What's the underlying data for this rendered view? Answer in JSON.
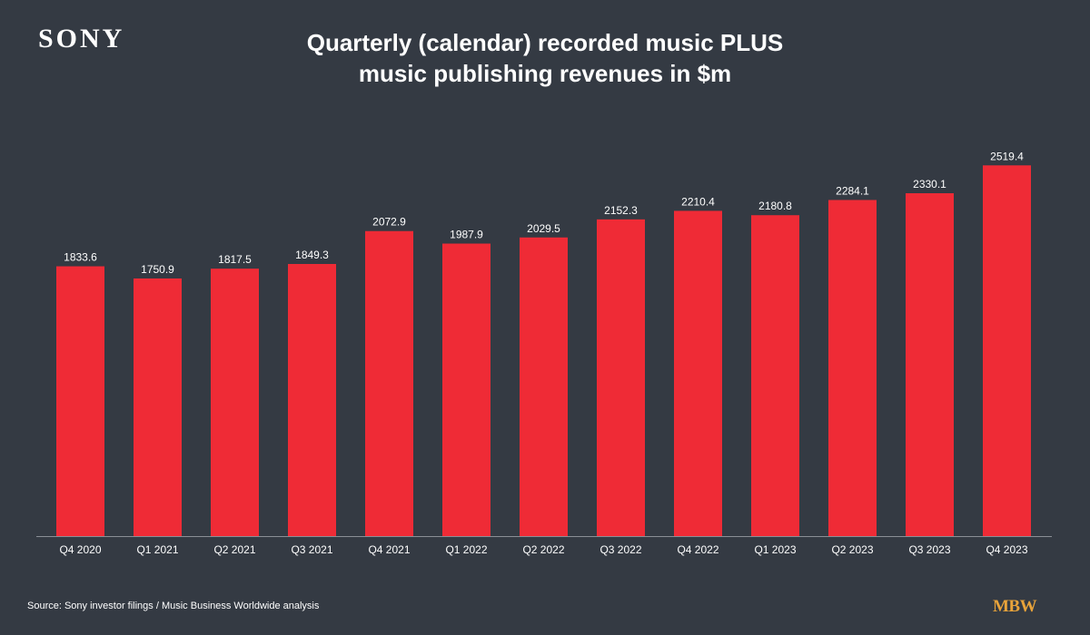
{
  "logo": "SONY",
  "title_line1": "Quarterly (calendar) recorded music PLUS",
  "title_line2": "music publishing revenues in $m",
  "source": "Source: Sony investor filings / Music Business Worldwide analysis",
  "brand": "MBW",
  "colors": {
    "bar": "#ef2b36",
    "background": "#343a43",
    "axis": "#8a8f96",
    "brand": "#e8a33a"
  },
  "chart_data": {
    "type": "bar",
    "categories": [
      "Q4 2020",
      "Q1 2021",
      "Q2 2021",
      "Q3 2021",
      "Q4 2021",
      "Q1 2022",
      "Q2 2022",
      "Q3 2022",
      "Q4 2022",
      "Q1 2023",
      "Q2 2023",
      "Q3 2023",
      "Q4 2023"
    ],
    "values": [
      1833.6,
      1750.9,
      1817.5,
      1849.3,
      2072.9,
      1987.9,
      2029.5,
      2152.3,
      2210.4,
      2180.8,
      2284.1,
      2330.1,
      2519.4
    ],
    "value_labels": [
      "1833.6",
      "1750.9",
      "1817.5",
      "1849.3",
      "2072.9",
      "1987.9",
      "2029.5",
      "2152.3",
      "2210.4",
      "2180.8",
      "2284.1",
      "2330.1",
      "2519.4"
    ],
    "ylim": [
      0,
      2700
    ],
    "grid": false,
    "legend": "none"
  }
}
